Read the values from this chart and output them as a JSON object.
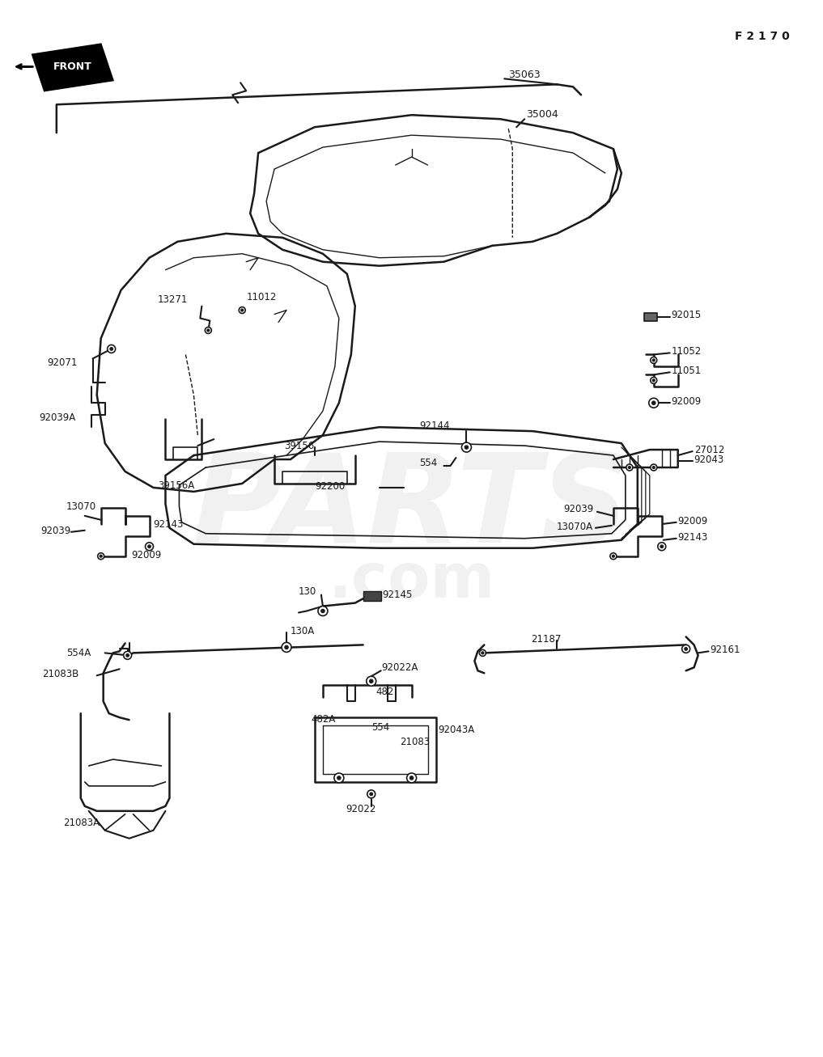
{
  "fig_code": "F 2 1 7 0",
  "bg": "#ffffff",
  "lc": "#1a1a1a",
  "figsize": [
    10.0,
    12.91
  ],
  "dpi": 100
}
